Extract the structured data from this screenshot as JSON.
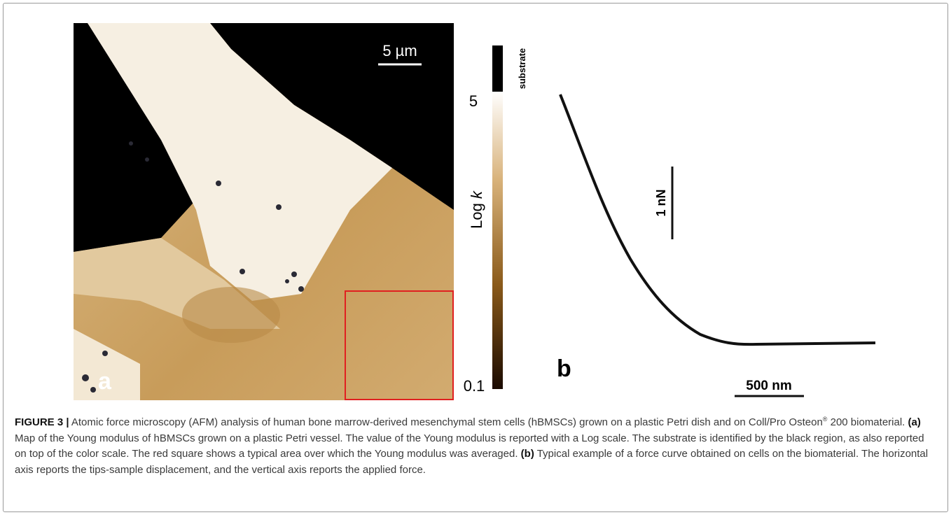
{
  "panel_a": {
    "label": "a",
    "scale_bar": "5 µm",
    "colorbar": {
      "top": "5",
      "bottom": "0.1",
      "axis_label": "Log ",
      "axis_variable": "k",
      "substrate": "substrate"
    }
  },
  "panel_b": {
    "label": "b",
    "scale_y": "1 nN",
    "scale_x": "500 nm"
  },
  "caption": {
    "figure": "FIGURE 3 |",
    "part1": " Atomic force microscopy (AFM) analysis of human bone marrow-derived mesenchymal stem cells (hBMSCs) grown on a plastic Petri dish and on Coll/Pro Osteon",
    "reg": "®",
    "part2": " 200 biomaterial. ",
    "a": "(a)",
    "part3": " Map of the Young modulus of hBMSCs grown on a plastic Petri vessel. The value of the Young modulus is reported with a Log scale. The substrate is identified by the black region, as also reported on top of the color scale. The red square shows a typical area over which the Young modulus was averaged. ",
    "b": "(b)",
    "part4": " Typical example of a force curve obtained on cells on the biomaterial. The horizontal axis reports the tips-sample displacement, and the vertical axis reports the applied force."
  }
}
